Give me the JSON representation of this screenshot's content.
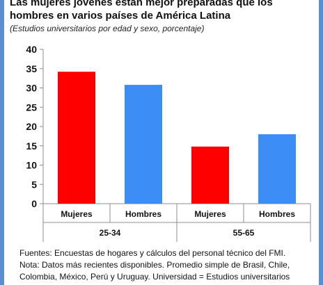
{
  "title": "Las mujeres jóvenes están mejor preparadas que los hombres en varios países de América Latina",
  "subtitle": "(Estudios universitarios por edad y sexo, porcentaje)",
  "chart_data": {
    "type": "bar",
    "title": "Las mujeres jóvenes están mejor preparadas que los hombres en varios países de América Latina",
    "subtitle": "(Estudios universitarios por edad y sexo, porcentaje)",
    "groups": [
      {
        "label": "25-34",
        "categories": [
          "Mujeres",
          "Hombres"
        ],
        "values": [
          34.2,
          30.8
        ],
        "colors": [
          "#ff0000",
          "#3c8df5"
        ]
      },
      {
        "label": "55-65",
        "categories": [
          "Mujeres",
          "Hombres"
        ],
        "values": [
          14.8,
          18.0
        ],
        "colors": [
          "#ff0000",
          "#3c8df5"
        ]
      }
    ],
    "ylim": [
      0,
      40
    ],
    "yticks": [
      "0",
      "5",
      "10",
      "15",
      "20",
      "25",
      "30",
      "35",
      "40"
    ],
    "grid": false,
    "legend": "none"
  },
  "notes": {
    "line1": "Fuentes: Encuestas de hogares y cálculos del personal técnico del FMI.",
    "line2": "Nota: Datos más recientes disponibles. Promedio simple de Brasil, Chile,",
    "line3": "Colombia, México, Perú y Uruguay. Universidad = Estudios universitarios"
  }
}
